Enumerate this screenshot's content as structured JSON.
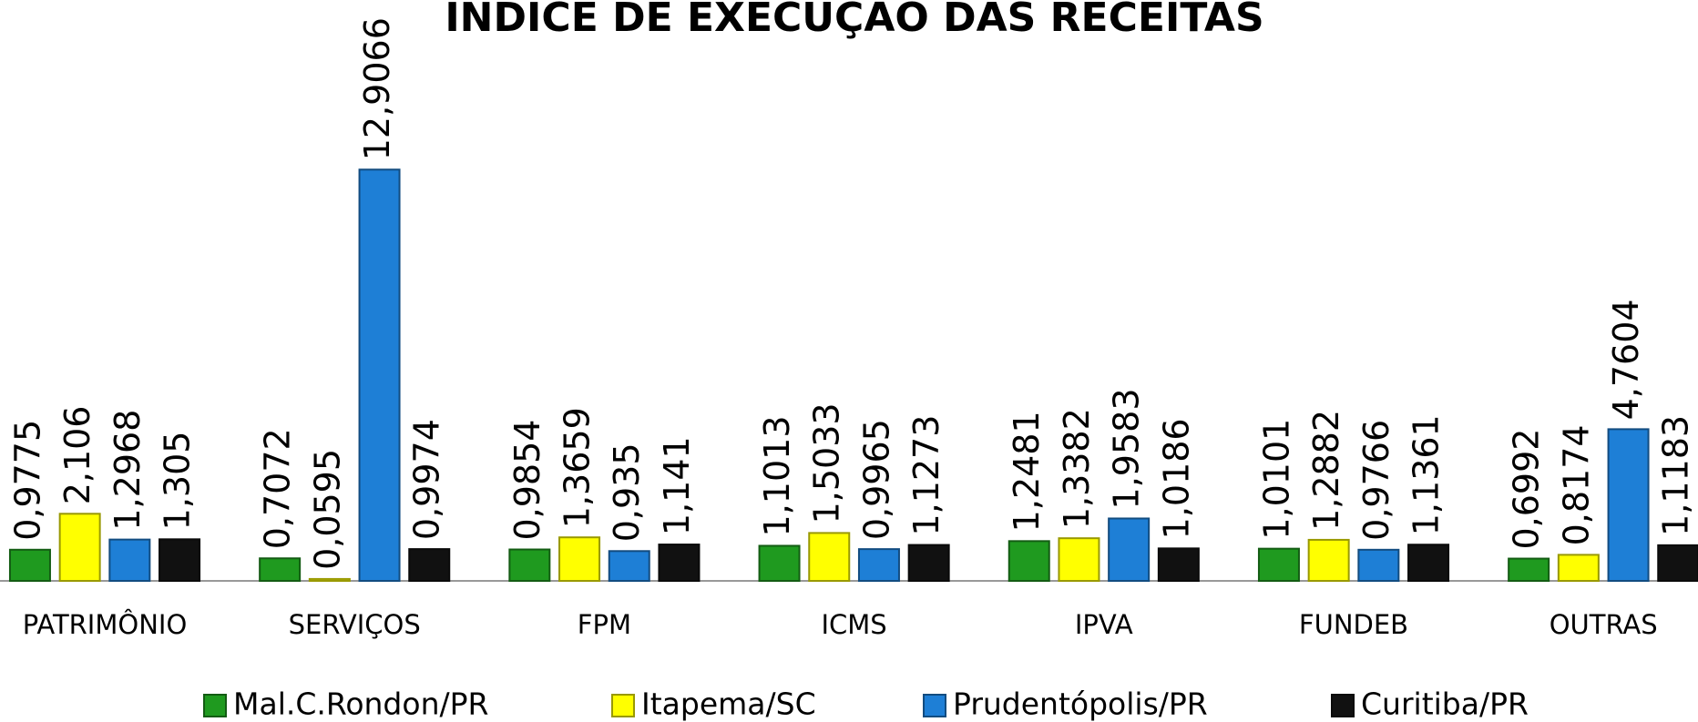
{
  "chart_data": {
    "type": "bar",
    "title": "ÍNDICE DE EXECUÇÃO DAS RECEITAS",
    "categories": [
      "PATRIMÔNIO",
      "SERVIÇOS",
      "FPM",
      "ICMS",
      "IPVA",
      "FUNDEB",
      "OUTRAS"
    ],
    "series": [
      {
        "name": "Mal.C.Rondon/PR",
        "color": "#1f9a1f",
        "values": [
          0.9775,
          0.7072,
          0.9854,
          1.1013,
          1.2481,
          1.0101,
          0.6992
        ],
        "value_labels": [
          "0,9775",
          "0,7072",
          "0,9854",
          "1,1013",
          "1,2481",
          "1,0101",
          "0,6992"
        ]
      },
      {
        "name": "Itapema/SC",
        "color": "#ffff00",
        "values": [
          2.106,
          0.0595,
          1.3659,
          1.5033,
          1.3382,
          1.2882,
          0.8174
        ],
        "value_labels": [
          "2,106",
          "0,0595",
          "1,3659",
          "1,5033",
          "1,3382",
          "1,2882",
          "0,8174"
        ]
      },
      {
        "name": "Prudentópolis/PR",
        "color": "#1e7fd6",
        "values": [
          1.2968,
          12.9066,
          0.935,
          0.9965,
          1.9583,
          0.9766,
          4.7604
        ],
        "value_labels": [
          "1,2968",
          "12,9066",
          "0,935",
          "0,9965",
          "1,9583",
          "0,9766",
          "4,7604"
        ]
      },
      {
        "name": "Curitiba/PR",
        "color": "#111111",
        "values": [
          1.305,
          0.9974,
          1.141,
          1.1273,
          1.0186,
          1.1361,
          1.1183
        ],
        "value_labels": [
          "1,305",
          "0,9974",
          "1,141",
          "1,1273",
          "1,0186",
          "1,1361",
          "1,1183"
        ]
      }
    ]
  }
}
